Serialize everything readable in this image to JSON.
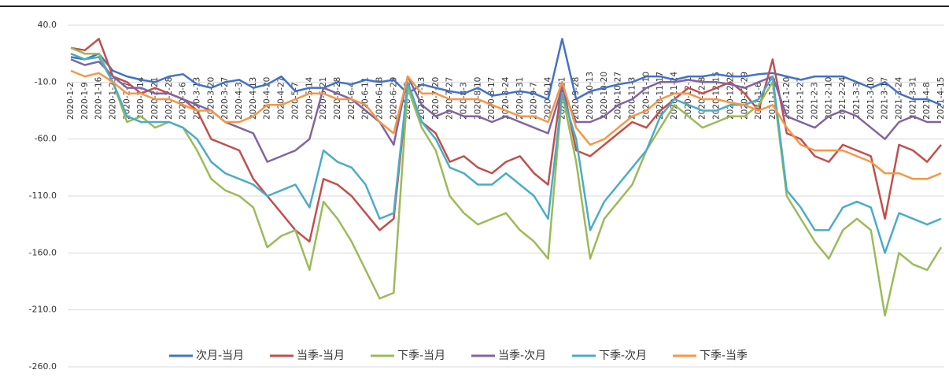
{
  "chart_data": {
    "type": "line",
    "categories": [
      "2020-1-2",
      "2020-1-9",
      "2020-1-16",
      "2020-1-23",
      "2020-2-7",
      "2020-2-14",
      "2020-2-21",
      "2020-2-28",
      "2020-3-6",
      "2020-3-13",
      "2020-3-20",
      "2020-3-27",
      "2020-4-3",
      "2020-4-13",
      "2020-4-20",
      "2020-4-27",
      "2020-5-7",
      "2020-5-14",
      "2020-5-21",
      "2020-5-28",
      "2020-6-4",
      "2020-6-11",
      "2020-6-18",
      "2020-6-29",
      "2020-7-6",
      "2020-7-13",
      "2020-7-20",
      "2020-7-27",
      "2020-8-3",
      "2020-8-10",
      "2020-8-17",
      "2020-8-24",
      "2020-8-31",
      "2020-9-7",
      "2020-9-14",
      "2020-9-21",
      "2020-9-28",
      "2020-10-13",
      "2020-10-20",
      "2020-10-27",
      "2020-11-3",
      "2020-11-10",
      "2020-11-17",
      "2020-11-24",
      "2020-12-1",
      "2020-12-8",
      "2020-12-15",
      "2020-12-22",
      "2020-12-29",
      "2021-1-6",
      "2021-1-13",
      "2021-1-20",
      "2021-1-27",
      "2021-2-3",
      "2021-2-10",
      "2021-2-24",
      "2021-3-3",
      "2021-3-10",
      "2021-3-17",
      "2021-3-24",
      "2021-3-31",
      "2021-4-8",
      "2021-4-15"
    ],
    "series": [
      {
        "name": "次月-当月",
        "color": "#4472c4",
        "values": [
          12,
          10,
          15,
          0,
          -5,
          -8,
          -10,
          -5,
          -3,
          -12,
          -15,
          -10,
          -8,
          -15,
          -12,
          -5,
          -18,
          -15,
          -15,
          -10,
          -12,
          -8,
          -10,
          -8,
          -20,
          -12,
          -15,
          -18,
          -20,
          -15,
          -22,
          -20,
          -18,
          -20,
          -25,
          28,
          -25,
          -18,
          -15,
          -12,
          -10,
          -5,
          -5,
          -8,
          -5,
          -5,
          -3,
          -5,
          -5,
          -3,
          -2,
          -5,
          -8,
          -5,
          -5,
          -5,
          -10,
          -15,
          -10,
          -20,
          -25,
          -25,
          -30
        ]
      },
      {
        "name": "当季-当月",
        "color": "#c0504d",
        "values": [
          20,
          18,
          28,
          -5,
          -10,
          -20,
          -15,
          -20,
          -25,
          -35,
          -60,
          -65,
          -70,
          -95,
          -110,
          -125,
          -140,
          -150,
          -95,
          -100,
          -110,
          -125,
          -140,
          -130,
          -15,
          -45,
          -55,
          -80,
          -75,
          -85,
          -90,
          -80,
          -75,
          -90,
          -100,
          -10,
          -70,
          -75,
          -65,
          -55,
          -45,
          -50,
          -35,
          -25,
          -15,
          -20,
          -15,
          -10,
          -20,
          -35,
          10,
          -55,
          -60,
          -75,
          -80,
          -65,
          -70,
          -75,
          -130,
          -65,
          -70,
          -80,
          -65
        ]
      },
      {
        "name": "下季-当月",
        "color": "#9bbb59",
        "values": [
          20,
          15,
          15,
          -10,
          -45,
          -40,
          -50,
          -45,
          -50,
          -70,
          -95,
          -105,
          -110,
          -120,
          -155,
          -145,
          -140,
          -175,
          -115,
          -130,
          -150,
          -175,
          -200,
          -195,
          -15,
          -50,
          -70,
          -110,
          -125,
          -135,
          -130,
          -125,
          -140,
          -150,
          -165,
          -20,
          -80,
          -165,
          -130,
          -115,
          -100,
          -70,
          -50,
          -30,
          -40,
          -50,
          -45,
          -40,
          -40,
          -30,
          -10,
          -110,
          -130,
          -150,
          -165,
          -140,
          -130,
          -140,
          -215,
          -160,
          -170,
          -175,
          -155
        ]
      },
      {
        "name": "当季-次月",
        "color": "#8064a2",
        "values": [
          10,
          5,
          8,
          -5,
          -15,
          -15,
          -20,
          -20,
          -25,
          -30,
          -35,
          -45,
          -50,
          -55,
          -80,
          -75,
          -70,
          -60,
          -15,
          -20,
          -25,
          -35,
          -45,
          -65,
          -5,
          -30,
          -40,
          -35,
          -40,
          -40,
          -45,
          -40,
          -45,
          -50,
          -55,
          -15,
          -45,
          -45,
          -40,
          -30,
          -25,
          -15,
          -10,
          -10,
          -8,
          -10,
          -10,
          -12,
          -15,
          -10,
          -5,
          -40,
          -45,
          -50,
          -40,
          -35,
          -40,
          -50,
          -60,
          -45,
          -40,
          -45,
          -45
        ]
      },
      {
        "name": "下季-次月",
        "color": "#4bacc6",
        "values": [
          15,
          10,
          12,
          -10,
          -40,
          -45,
          -45,
          -45,
          -50,
          -60,
          -80,
          -90,
          -95,
          -100,
          -110,
          -105,
          -100,
          -120,
          -70,
          -80,
          -85,
          -100,
          -130,
          -125,
          -10,
          -45,
          -60,
          -85,
          -90,
          -100,
          -100,
          -90,
          -100,
          -110,
          -130,
          -20,
          -60,
          -140,
          -115,
          -100,
          -85,
          -70,
          -40,
          -25,
          -30,
          -35,
          -35,
          -30,
          -30,
          -25,
          -5,
          -105,
          -120,
          -140,
          -140,
          -120,
          -115,
          -120,
          -160,
          -125,
          -130,
          -135,
          -130
        ]
      },
      {
        "name": "下季-当季",
        "color": "#f79646",
        "values": [
          0,
          -5,
          -2,
          -10,
          -20,
          -20,
          -25,
          -25,
          -30,
          -35,
          -35,
          -45,
          -45,
          -40,
          -30,
          -30,
          -25,
          -20,
          -20,
          -25,
          -25,
          -30,
          -45,
          -55,
          -5,
          -20,
          -20,
          -25,
          -25,
          -25,
          -30,
          -35,
          -40,
          -40,
          -45,
          -10,
          -50,
          -65,
          -60,
          -50,
          -40,
          -35,
          -25,
          -20,
          -20,
          -25,
          -25,
          -28,
          -30,
          -35,
          -30,
          -50,
          -65,
          -70,
          -70,
          -70,
          -75,
          -80,
          -90,
          -90,
          -95,
          -95,
          -90
        ]
      }
    ],
    "ylim": [
      -260,
      40
    ],
    "yticks": [
      {
        "value": -260,
        "label": "-260.0"
      },
      {
        "value": -210,
        "label": "-210.0"
      },
      {
        "value": -160,
        "label": "-160.0"
      },
      {
        "value": -110,
        "label": "-110.0"
      },
      {
        "value": -60,
        "label": "-60.0"
      },
      {
        "value": -10,
        "label": "-10.0"
      },
      {
        "value": 40,
        "label": "40.0"
      }
    ],
    "grid": true
  }
}
